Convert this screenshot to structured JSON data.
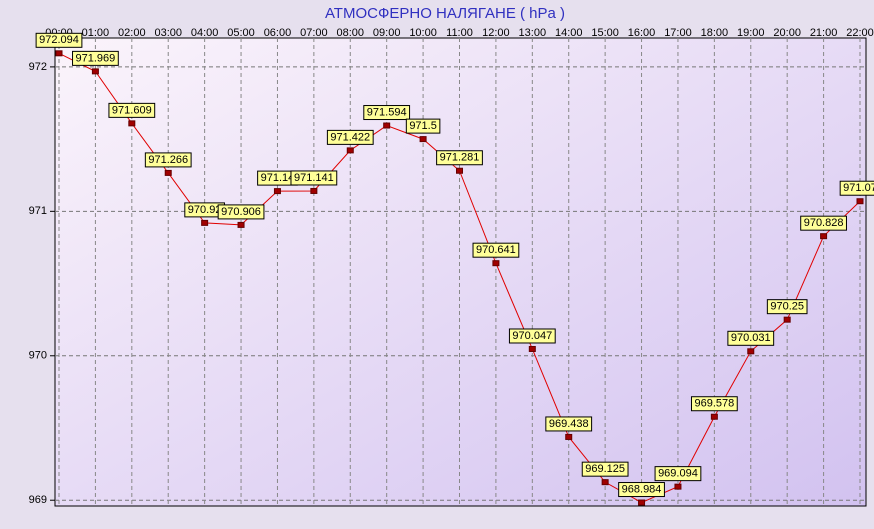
{
  "chart_data": {
    "type": "line",
    "title": "АТМОСФЕРНО НАЛЯГАНЕ  ( hPa )",
    "categories": [
      "00:00",
      "01:00",
      "02:00",
      "03:00",
      "04:00",
      "05:00",
      "06:00",
      "07:00",
      "08:00",
      "09:00",
      "10:00",
      "11:00",
      "12:00",
      "13:00",
      "14:00",
      "15:00",
      "16:00",
      "17:00",
      "18:00",
      "19:00",
      "20:00",
      "21:00",
      "22:00"
    ],
    "series": [
      {
        "name": "hPa",
        "color": "#e00000",
        "values": [
          972.094,
          971.969,
          971.609,
          971.266,
          970.92,
          970.906,
          971.14,
          971.141,
          971.422,
          971.594,
          971.5,
          971.281,
          970.641,
          970.047,
          969.438,
          969.125,
          968.984,
          969.094,
          969.578,
          970.031,
          970.25,
          970.828,
          971.07
        ]
      }
    ],
    "ylim": [
      968.96,
      972.2
    ],
    "yticks": [
      969,
      970,
      971,
      972
    ],
    "grid": true
  }
}
